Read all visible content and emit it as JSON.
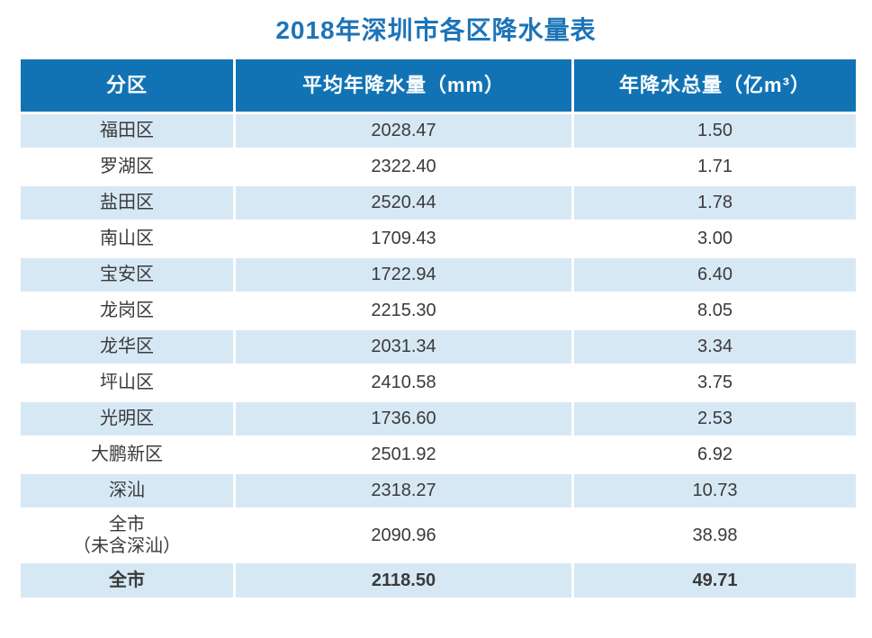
{
  "colors": {
    "title": "#1C74B8",
    "header_bg": "#1173B4",
    "header_text": "#FFFFFF",
    "row_bg": "#FFFFFF",
    "row_alt_bg": "#D7E8F5",
    "cell_text": "#3A3A3A"
  },
  "page": {
    "title": "2018年深圳市各区降水量表"
  },
  "table": {
    "columns": [
      "分区",
      "平均年降水量（mm）",
      "年降水总量（亿m³）"
    ],
    "rows": [
      {
        "district": "福田区",
        "avg": "2028.47",
        "total": "1.50"
      },
      {
        "district": "罗湖区",
        "avg": "2322.40",
        "total": "1.71"
      },
      {
        "district": "盐田区",
        "avg": "2520.44",
        "total": "1.78"
      },
      {
        "district": "南山区",
        "avg": "1709.43",
        "total": "3.00"
      },
      {
        "district": "宝安区",
        "avg": "1722.94",
        "total": "6.40"
      },
      {
        "district": "龙岗区",
        "avg": "2215.30",
        "total": "8.05"
      },
      {
        "district": "龙华区",
        "avg": "2031.34",
        "total": "3.34"
      },
      {
        "district": "坪山区",
        "avg": "2410.58",
        "total": "3.75"
      },
      {
        "district": "光明区",
        "avg": "1736.60",
        "total": "2.53"
      },
      {
        "district": "大鹏新区",
        "avg": "2501.92",
        "total": "6.92"
      },
      {
        "district": "深汕",
        "avg": "2318.27",
        "total": "10.73"
      },
      {
        "district": "全市\n（未含深汕）",
        "avg": "2090.96",
        "total": "38.98"
      },
      {
        "district": "全市",
        "avg": "2118.50",
        "total": "49.71"
      }
    ]
  },
  "chart_data": {
    "type": "table",
    "title": "2018年深圳市各区降水量表",
    "columns": [
      "分区",
      "平均年降水量（mm）",
      "年降水总量（亿m³）"
    ],
    "rows": [
      [
        "福田区",
        2028.47,
        1.5
      ],
      [
        "罗湖区",
        2322.4,
        1.71
      ],
      [
        "盐田区",
        2520.44,
        1.78
      ],
      [
        "南山区",
        1709.43,
        3.0
      ],
      [
        "宝安区",
        1722.94,
        6.4
      ],
      [
        "龙岗区",
        2215.3,
        8.05
      ],
      [
        "龙华区",
        2031.34,
        3.34
      ],
      [
        "坪山区",
        2410.58,
        3.75
      ],
      [
        "光明区",
        1736.6,
        2.53
      ],
      [
        "大鹏新区",
        2501.92,
        6.92
      ],
      [
        "深汕",
        2318.27,
        10.73
      ],
      [
        "全市（未含深汕）",
        2090.96,
        38.98
      ],
      [
        "全市",
        2118.5,
        49.71
      ]
    ]
  }
}
